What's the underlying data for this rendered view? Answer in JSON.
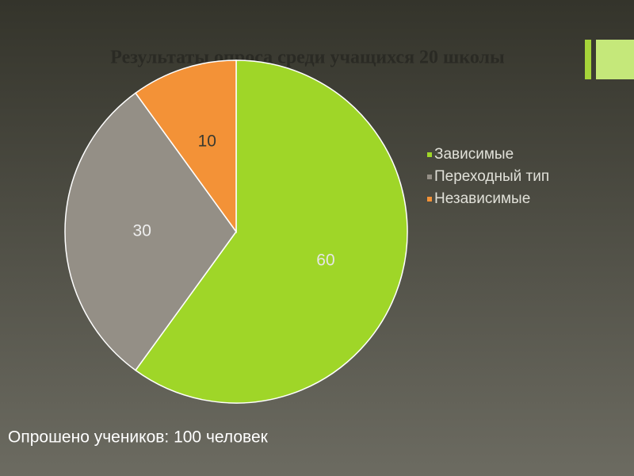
{
  "chart_data": {
    "type": "pie",
    "title": "Результаты опроса среди учащихся 20 школы",
    "categories": [
      "Зависимые",
      "Переходный тип",
      "Независимые"
    ],
    "values": [
      60,
      30,
      10
    ],
    "colors": [
      "#9fd628",
      "#948f86",
      "#f39237"
    ],
    "legend": "right"
  },
  "footer": "Опрошено учеников: 100 человек"
}
